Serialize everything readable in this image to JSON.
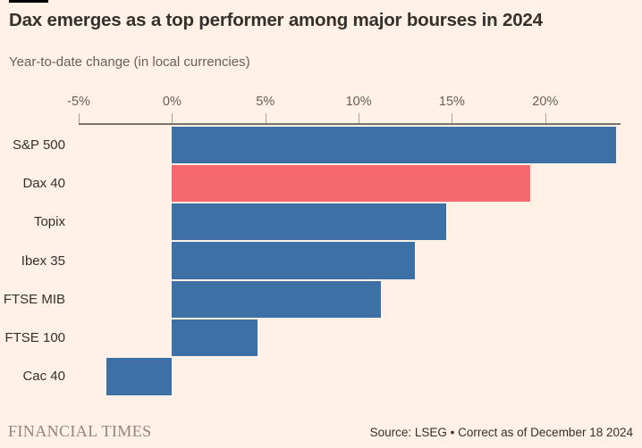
{
  "page": {
    "background_color": "#fff1e5"
  },
  "header": {
    "accent_bar_color": "#000000"
  },
  "chart_data": {
    "type": "bar",
    "orientation": "horizontal",
    "title": "Dax emerges as a top performer among major bourses in 2024",
    "subtitle": "Year-to-date change (in local currencies)",
    "categories": [
      "S&P 500",
      "Dax 40",
      "Topix",
      "Ibex 35",
      "FTSE MIB",
      "FTSE 100",
      "Cac 40"
    ],
    "values": [
      23.8,
      19.2,
      14.7,
      13.0,
      11.2,
      4.6,
      -3.5
    ],
    "unit": "%",
    "highlight_category": "Dax 40",
    "bar_color": "#3d70a4",
    "highlight_color": "#f5696f",
    "x_ticks": [
      {
        "label": "-5%",
        "value": -5
      },
      {
        "label": "0%",
        "value": 0
      },
      {
        "label": "5%",
        "value": 5
      },
      {
        "label": "10%",
        "value": 10
      },
      {
        "label": "15%",
        "value": 15
      },
      {
        "label": "20%",
        "value": 20
      }
    ],
    "xlim": [
      -5,
      24
    ],
    "grid": false,
    "legend": false,
    "axis_color": "#7a736d",
    "tick_color": "#a9a19a"
  },
  "footer": {
    "brand": "FINANCIAL TIMES",
    "source": "Source: LSEG • Correct as of December 18 2024"
  }
}
